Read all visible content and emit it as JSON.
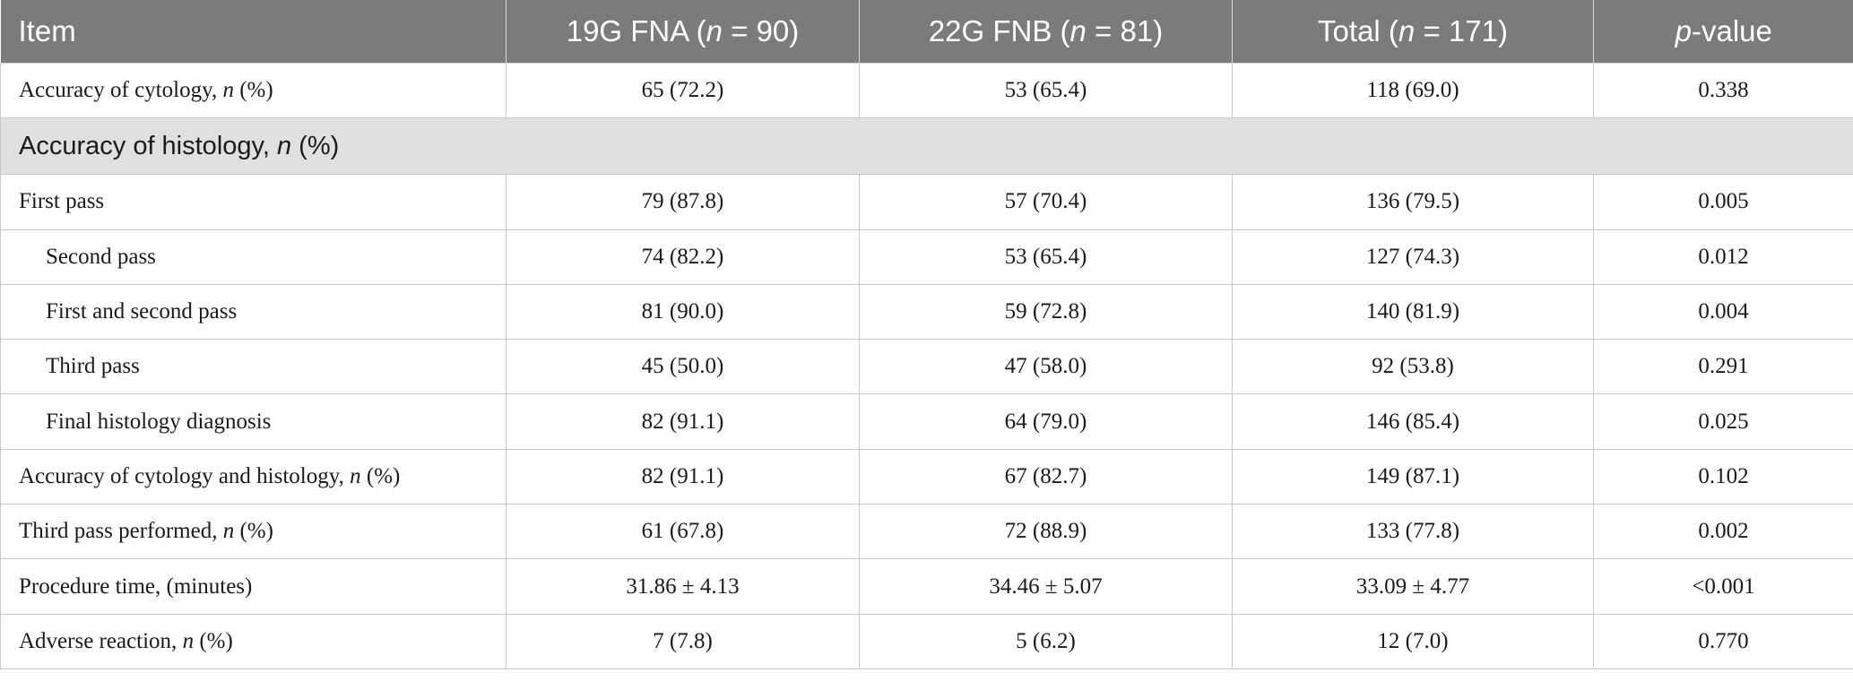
{
  "table": {
    "headers": [
      {
        "pre": "Item",
        "ital": "",
        "post": ""
      },
      {
        "pre": "19G FNA (",
        "ital": "n",
        "post": " = 90)"
      },
      {
        "pre": "22G FNB (",
        "ital": "n",
        "post": " = 81)"
      },
      {
        "pre": "Total (",
        "ital": "n",
        "post": " = 171)"
      },
      {
        "pre": "",
        "ital": "p",
        "post": "-value"
      }
    ],
    "rows": [
      {
        "label_pre": "Accuracy of cytology, ",
        "label_ital": "n",
        "label_post": " (%)",
        "fna": "65 (72.2)",
        "fnb": "53 (65.4)",
        "total": "118 (69.0)",
        "p": "0.338"
      },
      {
        "section": true,
        "label_pre": "Accuracy of histology, ",
        "label_ital": "n",
        "label_post": " (%)"
      },
      {
        "label_pre": "First pass",
        "fna": "79 (87.8)",
        "fnb": "57 (70.4)",
        "total": "136 (79.5)",
        "p": "0.005"
      },
      {
        "indent": true,
        "label_pre": "Second pass",
        "fna": "74 (82.2)",
        "fnb": "53 (65.4)",
        "total": "127 (74.3)",
        "p": "0.012"
      },
      {
        "indent": true,
        "label_pre": "First and second pass",
        "fna": "81 (90.0)",
        "fnb": "59 (72.8)",
        "total": "140 (81.9)",
        "p": "0.004"
      },
      {
        "indent": true,
        "label_pre": "Third pass",
        "fna": "45 (50.0)",
        "fnb": "47 (58.0)",
        "total": "92 (53.8)",
        "p": "0.291"
      },
      {
        "indent": true,
        "label_pre": "Final histology diagnosis",
        "fna": "82 (91.1)",
        "fnb": "64 (79.0)",
        "total": "146 (85.4)",
        "p": "0.025"
      },
      {
        "label_pre": "Accuracy of cytology and histology, ",
        "label_ital": "n",
        "label_post": " (%)",
        "fna": "82 (91.1)",
        "fnb": "67 (82.7)",
        "total": "149 (87.1)",
        "p": "0.102"
      },
      {
        "label_pre": "Third pass performed, ",
        "label_ital": "n",
        "label_post": " (%)",
        "fna": "61 (67.8)",
        "fnb": "72 (88.9)",
        "total": "133 (77.8)",
        "p": "0.002"
      },
      {
        "label_pre": "Procedure time, (minutes)",
        "fna": "31.86 ± 4.13",
        "fnb": "34.46 ± 5.07",
        "total": "33.09 ± 4.77",
        "p": "<0.001"
      },
      {
        "label_pre": "Adverse reaction, ",
        "label_ital": "n",
        "label_post": " (%)",
        "fna": "7 (7.8)",
        "fnb": "5 (6.2)",
        "total": "12 (7.0)",
        "p": "0.770"
      }
    ]
  }
}
